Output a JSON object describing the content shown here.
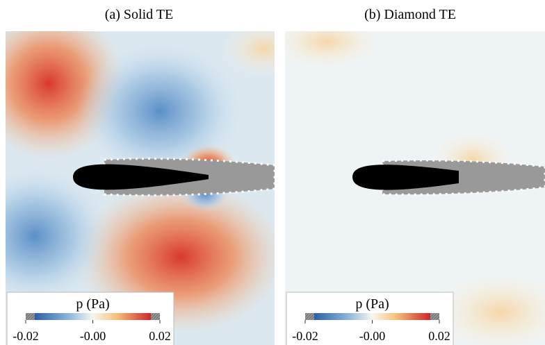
{
  "panels": [
    {
      "label": "(a) Solid TE",
      "colorbar": {
        "label": "p (Pa)",
        "lim": [
          -0.02,
          0.02
        ],
        "ticks": [
          -0.02,
          {
            "value": 0,
            "label": "-0.00"
          },
          0.02
        ]
      }
    },
    {
      "label": "(b) Diamond TE",
      "colorbar": {
        "label": "p (Pa)",
        "lim": [
          -0.02,
          0.02
        ],
        "ticks": [
          -0.02,
          {
            "value": 0,
            "label": "-0.00"
          },
          0.02
        ]
      }
    }
  ]
}
